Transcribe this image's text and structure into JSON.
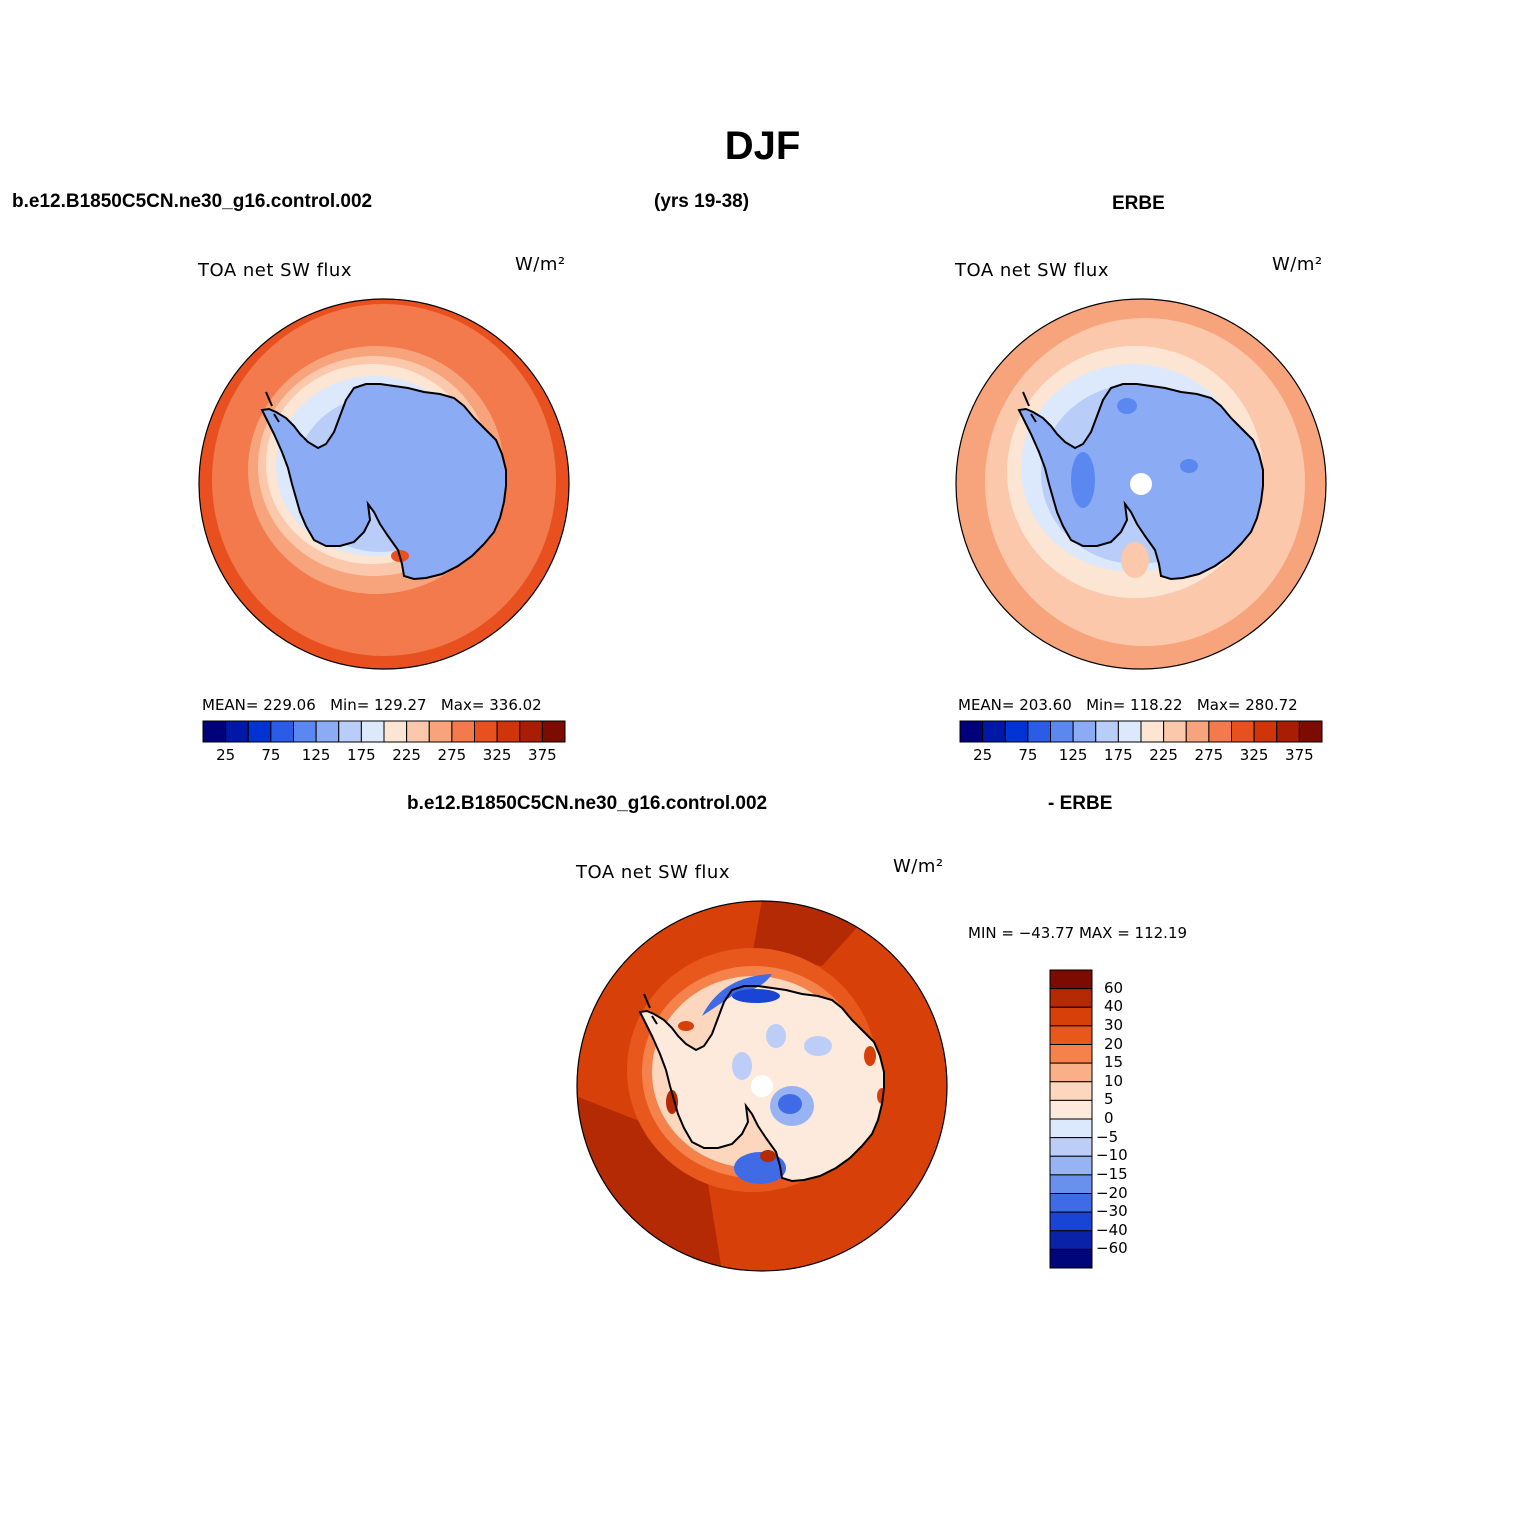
{
  "title": "DJF",
  "header": {
    "case_name": "b.e12.B1850C5CN.ne30_g16.control.002",
    "years": "(yrs 19-38)",
    "obs_name": "ERBE",
    "diff_case_name": "b.e12.B1850C5CN.ne30_g16.control.002",
    "diff_obs_name": "- ERBE"
  },
  "panels": [
    {
      "variable": "TOA net SW flux",
      "units": "W/m²",
      "mean_label": "MEAN=",
      "mean": "229.06",
      "min_label": "Min=",
      "min": "129.27",
      "max_label": "Max=",
      "max": "336.02"
    },
    {
      "variable": "TOA net SW flux",
      "units": "W/m²",
      "mean_label": "MEAN=",
      "mean": "203.60",
      "min_label": "Min=",
      "min": "118.22",
      "max_label": "Max=",
      "max": "280.72"
    }
  ],
  "diff_panel": {
    "variable": "TOA net SW flux",
    "units": "W/m²",
    "minmax": "MIN = −43.77 MAX = 112.19"
  },
  "colorbar_horizontal": {
    "colors": [
      "#00007a",
      "#0018a8",
      "#0032d4",
      "#2b5ce8",
      "#5b87f0",
      "#8cabf5",
      "#b8cdf8",
      "#dce8fb",
      "#fde5d3",
      "#fbc8ab",
      "#f7a47c",
      "#f27a4c",
      "#e9501f",
      "#cf3508",
      "#a81d04",
      "#7c0b02"
    ],
    "tick_labels": [
      "25",
      "75",
      "125",
      "175",
      "225",
      "275",
      "325",
      "375"
    ]
  },
  "colorbar_vertical": {
    "colors": [
      "#7c0b02",
      "#b32a05",
      "#d8400a",
      "#e8581c",
      "#f4824a",
      "#f9b089",
      "#fcd6bd",
      "#fdeadc",
      "#dce8fb",
      "#bccef8",
      "#97b3f4",
      "#6a90ee",
      "#3f6ce6",
      "#1a45d4",
      "#0a22a8",
      "#00067a"
    ],
    "tick_labels": [
      "60",
      "40",
      "30",
      "20",
      "15",
      "10",
      "5",
      "0",
      "−5",
      "−10",
      "−15",
      "−20",
      "−30",
      "−40",
      "−60"
    ]
  }
}
